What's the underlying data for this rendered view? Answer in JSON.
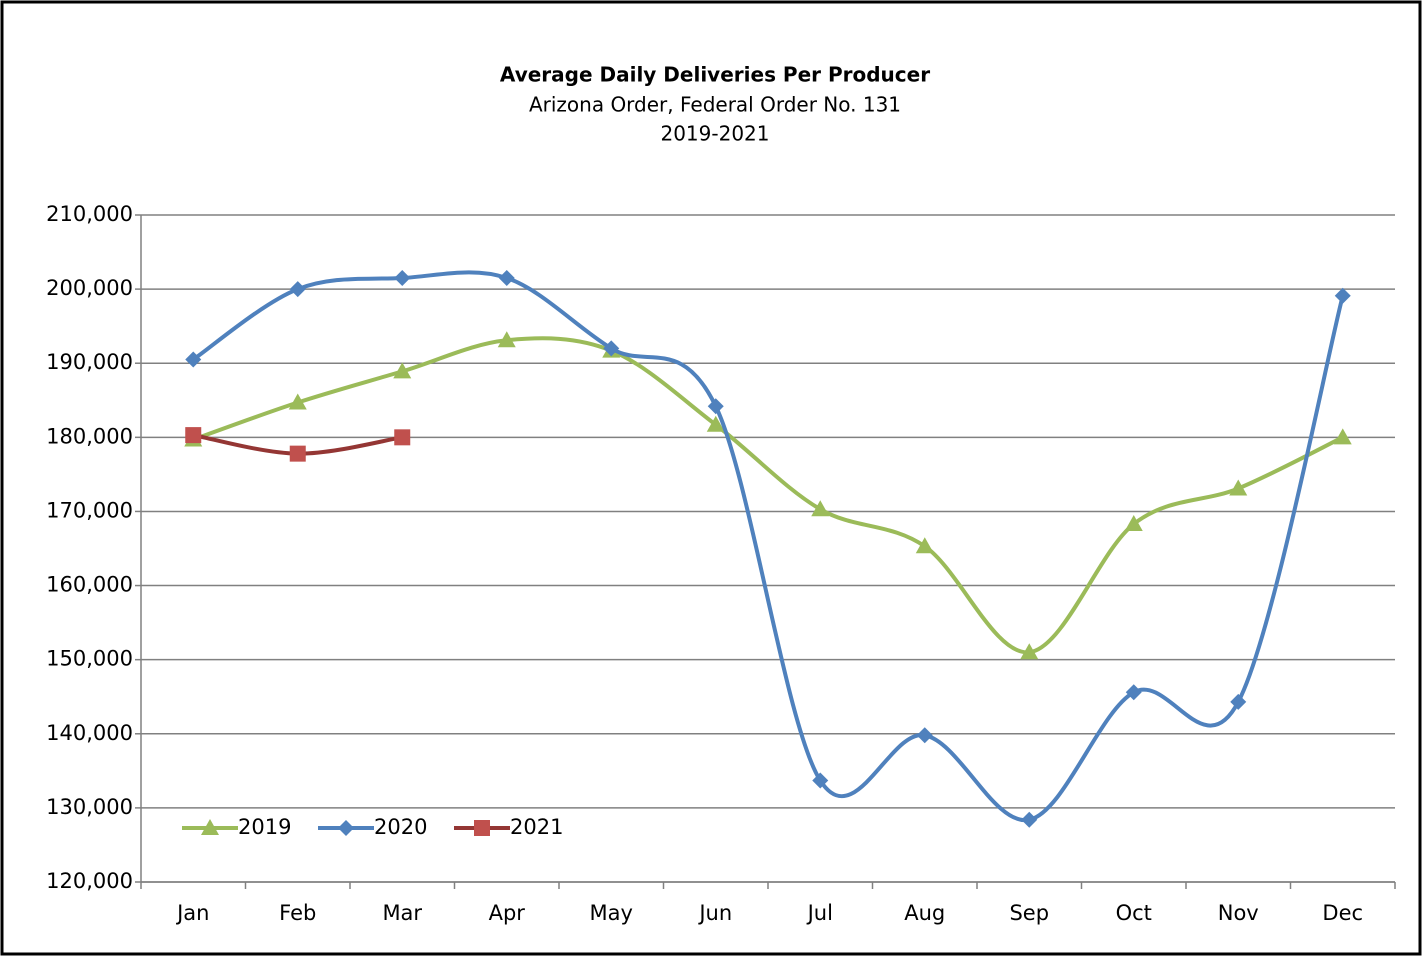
{
  "chart_data": {
    "type": "line",
    "title": "Average Daily Deliveries Per Producer",
    "subtitle": "Arizona Order, Federal Order No. 131",
    "subtitle2": "2019-2021",
    "categories": [
      "Jan",
      "Feb",
      "Mar",
      "Apr",
      "May",
      "Jun",
      "Jul",
      "Aug",
      "Sep",
      "Oct",
      "Nov",
      "Dec"
    ],
    "series": [
      {
        "name": "2019",
        "color": "#9bbb59",
        "marker": "triangle",
        "values": [
          179700,
          184700,
          188900,
          193100,
          191700,
          181700,
          170300,
          165300,
          151000,
          168300,
          173100,
          180000
        ]
      },
      {
        "name": "2020",
        "color": "#4f81bd",
        "marker": "diamond",
        "values": [
          190500,
          200000,
          201500,
          201500,
          192000,
          184200,
          133700,
          139800,
          128400,
          145600,
          144300,
          199100
        ]
      },
      {
        "name": "2021",
        "color": "#c0504d",
        "marker": "square",
        "line_color": "#943634",
        "values": [
          180300,
          177800,
          180000,
          null,
          null,
          null,
          null,
          null,
          null,
          null,
          null,
          null
        ]
      }
    ],
    "ylim": [
      120000,
      210000
    ],
    "yticks": [
      {
        "value": 120000,
        "label": "120,000"
      },
      {
        "value": 130000,
        "label": "130,000"
      },
      {
        "value": 140000,
        "label": "140,000"
      },
      {
        "value": 150000,
        "label": "150,000"
      },
      {
        "value": 160000,
        "label": "160,000"
      },
      {
        "value": 170000,
        "label": "170,000"
      },
      {
        "value": 180000,
        "label": "180,000"
      },
      {
        "value": 190000,
        "label": "190,000"
      },
      {
        "value": 200000,
        "label": "200,000"
      },
      {
        "value": 210000,
        "label": "210,000"
      }
    ],
    "grid": true,
    "legend": "lower left",
    "smooth": true
  }
}
